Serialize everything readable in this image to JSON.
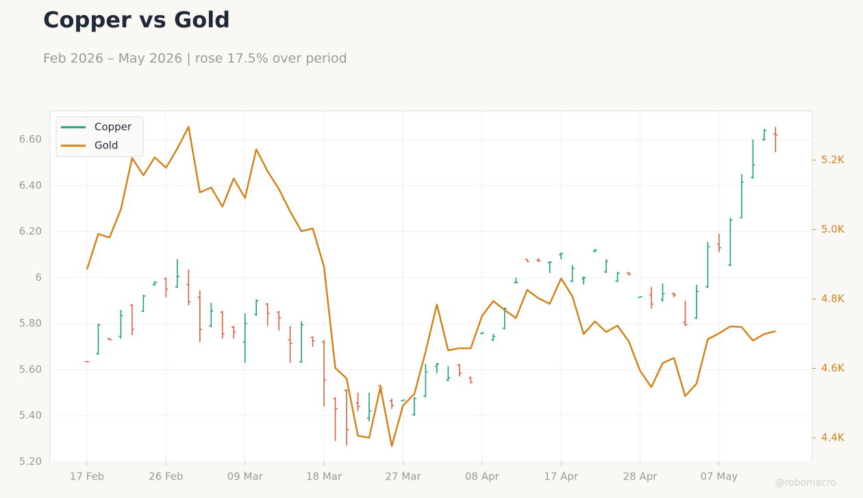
{
  "chart_data": {
    "type": "ohlc",
    "title": "Copper vs Gold",
    "subtitle": "Feb 2026 – May 2026 | rose 17.5% over period",
    "watermark": "@robomacro",
    "categories": [
      "17 Feb",
      null,
      null,
      null,
      null,
      null,
      null,
      "26 Feb",
      null,
      null,
      null,
      null,
      null,
      null,
      "09 Mar",
      null,
      null,
      null,
      null,
      null,
      null,
      "18 Mar",
      null,
      null,
      null,
      null,
      null,
      null,
      "27 Mar",
      null,
      null,
      null,
      null,
      null,
      null,
      "08 Apr",
      null,
      null,
      null,
      null,
      null,
      null,
      "17 Apr",
      null,
      null,
      null,
      null,
      null,
      null,
      "28 Apr",
      null,
      null,
      null,
      null,
      null,
      null,
      "07 May",
      null,
      null,
      null,
      null,
      null
    ],
    "ylim": [
      5.2,
      6.725
    ],
    "yticks": [
      {
        "value": 5.2,
        "label": "5.20"
      },
      {
        "value": 5.4,
        "label": "5.40"
      },
      {
        "value": 5.6,
        "label": "5.60"
      },
      {
        "value": 5.8,
        "label": "5.80"
      },
      6,
      {
        "value": 6.2,
        "label": "6.20"
      },
      {
        "value": 6.4,
        "label": "6.40"
      },
      {
        "value": 6.6,
        "label": "6.60"
      }
    ],
    "y2lim": [
      4331,
      5342
    ],
    "y2ticks": [
      {
        "value": 4400,
        "label": "4.4K"
      },
      {
        "value": 4600,
        "label": "4.6K"
      },
      {
        "value": 4800,
        "label": "4.8K"
      },
      {
        "value": 5000,
        "label": "5.0K"
      },
      {
        "value": 5200,
        "label": "5.2K"
      }
    ],
    "grid": true,
    "legend": "upper left",
    "series": [
      {
        "name": "Copper",
        "type": "ohlc",
        "color": "#1b9e77",
        "down_color": "#d95f3b",
        "open": [
          5.635,
          5.67,
          5.735,
          5.745,
          5.88,
          5.855,
          5.97,
          5.995,
          5.96,
          5.97,
          5.915,
          5.79,
          5.85,
          5.785,
          5.72,
          5.84,
          5.885,
          5.85,
          5.73,
          5.635,
          5.74,
          5.72,
          5.475,
          5.51,
          5.455,
          5.39,
          5.53,
          5.465,
          5.465,
          5.405,
          5.485,
          5.615,
          5.555,
          5.62,
          5.565,
          5.757,
          5.73,
          5.78,
          5.978,
          6.08,
          6.075,
          6.065,
          6.1,
          5.985,
          5.995,
          6.115,
          6.025,
          5.985,
          6.02,
          5.915,
          5.925,
          5.905,
          5.93,
          5.805,
          5.825,
          5.96,
          6.145,
          6.055,
          6.26,
          6.435,
          6.6,
          6.625
        ],
        "high": [
          5.637,
          5.8,
          5.737,
          5.86,
          5.885,
          5.925,
          5.985,
          6.0,
          6.08,
          6.035,
          5.945,
          5.89,
          5.855,
          5.79,
          5.845,
          5.905,
          5.89,
          5.855,
          5.79,
          5.81,
          5.745,
          5.73,
          5.48,
          5.515,
          5.5,
          5.5,
          5.535,
          5.475,
          5.47,
          5.48,
          5.625,
          5.63,
          5.615,
          5.625,
          5.57,
          5.762,
          5.755,
          5.87,
          6.0,
          6.08,
          6.085,
          6.07,
          6.11,
          6.055,
          6.005,
          6.125,
          6.08,
          6.025,
          6.025,
          5.918,
          5.96,
          5.975,
          5.935,
          5.9,
          5.97,
          6.155,
          6.19,
          6.26,
          6.45,
          6.6,
          6.645,
          6.655
        ],
        "low": [
          5.633,
          5.665,
          5.728,
          5.735,
          5.75,
          5.85,
          5.965,
          5.915,
          5.955,
          5.88,
          5.72,
          5.785,
          5.735,
          5.735,
          5.63,
          5.835,
          5.79,
          5.77,
          5.63,
          5.63,
          5.7,
          5.44,
          5.29,
          5.27,
          5.42,
          5.375,
          5.5,
          5.43,
          5.465,
          5.4,
          5.48,
          5.585,
          5.55,
          5.57,
          5.54,
          5.755,
          5.725,
          5.775,
          5.975,
          6.068,
          6.07,
          6.02,
          6.08,
          5.98,
          5.97,
          6.11,
          6.02,
          5.98,
          6.01,
          5.914,
          5.865,
          5.895,
          5.915,
          5.79,
          5.82,
          5.955,
          6.11,
          6.05,
          6.26,
          6.43,
          6.595,
          6.545
        ],
        "close": [
          5.635,
          5.795,
          5.73,
          5.835,
          5.775,
          5.92,
          5.98,
          5.95,
          6.005,
          5.895,
          5.775,
          5.855,
          5.755,
          5.765,
          5.8,
          5.9,
          5.845,
          5.825,
          5.715,
          5.795,
          5.725,
          5.555,
          5.43,
          5.34,
          5.44,
          5.42,
          5.52,
          5.445,
          5.468,
          5.475,
          5.59,
          5.625,
          5.565,
          5.585,
          5.545,
          5.76,
          5.745,
          5.865,
          5.98,
          6.07,
          6.072,
          6.068,
          6.105,
          6.04,
          6.0,
          6.12,
          6.07,
          6.02,
          6.015,
          5.917,
          5.885,
          5.93,
          5.925,
          5.795,
          5.94,
          6.135,
          6.13,
          6.25,
          6.415,
          6.49,
          6.64,
          6.62
        ]
      },
      {
        "name": "Gold",
        "type": "line",
        "axis": "y2",
        "color": "#d4821a",
        "values": [
          4885,
          4987,
          4977,
          5058,
          5206,
          5156,
          5208,
          5178,
          5233,
          5296,
          5107,
          5121,
          5066,
          5147,
          5091,
          5231,
          5168,
          5117,
          5052,
          4995,
          5003,
          4893,
          4601,
          4571,
          4406,
          4400,
          4546,
          4376,
          4493,
          4526,
          4648,
          4784,
          4652,
          4658,
          4658,
          4751,
          4794,
          4768,
          4745,
          4826,
          4802,
          4786,
          4859,
          4808,
          4699,
          4735,
          4705,
          4723,
          4678,
          4593,
          4546,
          4615,
          4630,
          4520,
          4556,
          4684,
          4701,
          4721,
          4719,
          4680,
          4699,
          4707
        ]
      }
    ]
  }
}
